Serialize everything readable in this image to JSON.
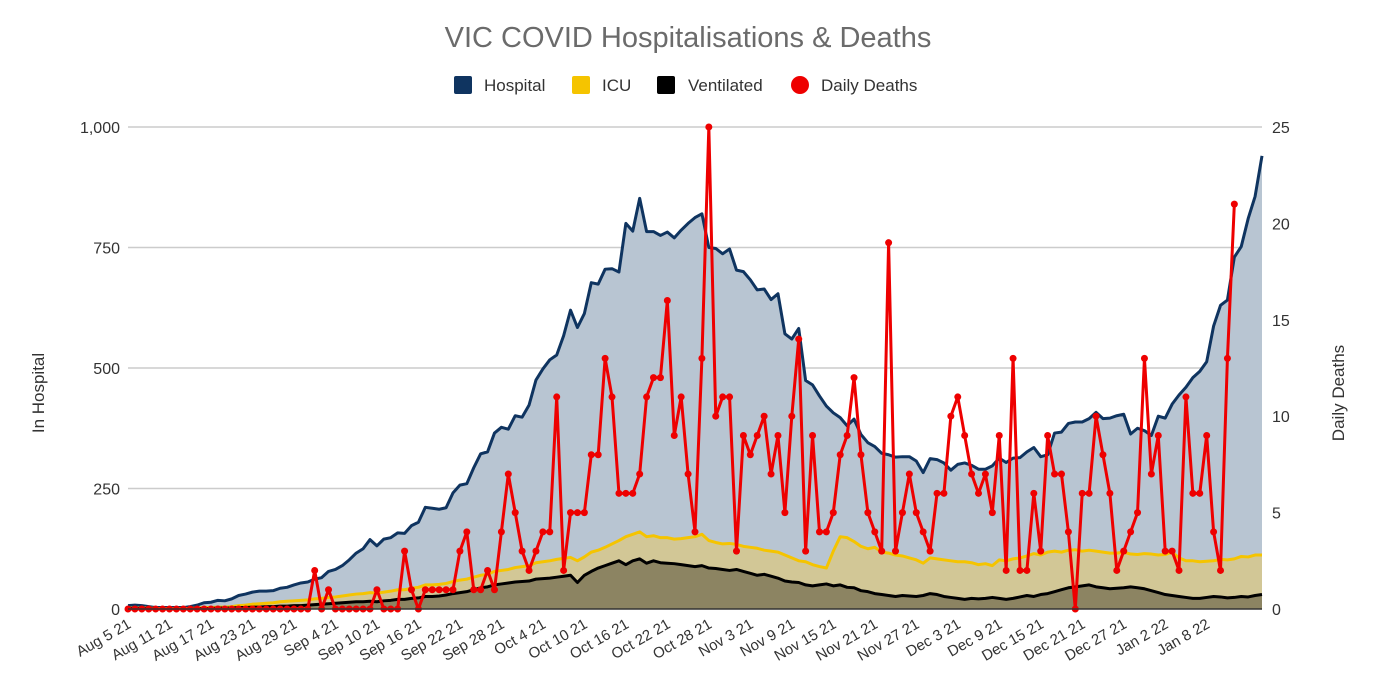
{
  "chart_data": {
    "type": "area",
    "title": "VIC COVID Hospitalisations & Deaths",
    "ylabel_left": "In Hospital",
    "ylabel_right": "Daily Deaths",
    "ylim_left": [
      0,
      1000
    ],
    "ylim_right": [
      0,
      25
    ],
    "yticks_left": [
      "0",
      "250",
      "500",
      "750",
      "1,000"
    ],
    "yticks_right": [
      "0",
      "5",
      "10",
      "15",
      "20",
      "25"
    ],
    "xtick_labels": [
      "Aug 5 21",
      "Aug 11 21",
      "Aug 17 21",
      "Aug 23 21",
      "Aug 29 21",
      "Sep 4 21",
      "Sep 10 21",
      "Sep 16 21",
      "Sep 22 21",
      "Sep 28 21",
      "Oct 4 21",
      "Oct 10 21",
      "Oct 16 21",
      "Oct 22 21",
      "Oct 28 21",
      "Nov 3 21",
      "Nov 9 21",
      "Nov 15 21",
      "Nov 21 21",
      "Nov 27 21",
      "Dec 3 21",
      "Dec 9 21",
      "Dec 15 21",
      "Dec 21 21",
      "Dec 27 21",
      "Jan 2 22",
      "Jan 8 22"
    ],
    "grid": true,
    "legend_position": "top",
    "colors": {
      "hospital_line": "#0f3460",
      "hospital_fill": "#b8c5d2",
      "icu_line": "#f5c400",
      "icu_fill": "#d2c796",
      "ventilated_line": "#000000",
      "ventilated_fill": "#8c8462",
      "deaths": "#ee0000",
      "grid": "#cccccc",
      "axis": "#333333"
    },
    "series": [
      {
        "name": "Hospital",
        "axis": "left",
        "values": [
          7,
          8,
          7,
          5,
          3,
          3,
          3,
          3,
          3,
          5,
          8,
          13,
          14,
          18,
          17,
          21,
          28,
          31,
          35,
          37,
          37,
          38,
          43,
          45,
          50,
          54,
          56,
          62,
          65,
          78,
          82,
          90,
          102,
          116,
          125,
          144,
          131,
          145,
          148,
          158,
          157,
          173,
          180,
          211,
          209,
          207,
          210,
          241,
          257,
          260,
          293,
          322,
          326,
          365,
          377,
          373,
          401,
          398,
          423,
          475,
          498,
          517,
          527,
          567,
          620,
          584,
          613,
          677,
          674,
          705,
          706,
          699,
          800,
          784,
          852,
          783,
          783,
          775,
          782,
          770,
          786,
          800,
          812,
          820,
          750,
          748,
          737,
          747,
          703,
          700,
          683,
          662,
          664,
          642,
          654,
          571,
          560,
          582,
          474,
          465,
          442,
          421,
          407,
          397,
          380,
          394,
          362,
          345,
          337,
          323,
          320,
          315,
          316,
          316,
          307,
          283,
          312,
          310,
          303,
          288,
          300,
          303,
          298,
          290,
          290,
          297,
          313,
          304,
          313,
          314,
          326,
          335,
          316,
          320,
          365,
          367,
          385,
          388,
          388,
          395,
          408,
          395,
          396,
          401,
          404,
          363,
          375,
          370,
          360,
          400,
          396,
          425,
          444,
          460,
          480,
          493,
          513,
          587,
          630,
          641,
          730,
          752,
          810,
          856,
          940
        ]
      },
      {
        "name": "ICU",
        "axis": "left",
        "values": [
          2,
          2,
          2,
          2,
          1,
          1,
          1,
          1,
          1,
          1,
          2,
          3,
          3,
          4,
          4,
          5,
          7,
          8,
          10,
          11,
          12,
          13,
          15,
          16,
          17,
          18,
          19,
          21,
          22,
          24,
          25,
          27,
          29,
          31,
          32,
          34,
          33,
          35,
          37,
          40,
          40,
          43,
          45,
          50,
          50,
          51,
          53,
          57,
          60,
          62,
          66,
          70,
          72,
          78,
          80,
          82,
          86,
          88,
          90,
          96,
          98,
          100,
          103,
          105,
          107,
          100,
          108,
          118,
          122,
          128,
          135,
          142,
          150,
          155,
          160,
          150,
          152,
          148,
          148,
          145,
          146,
          148,
          150,
          155,
          142,
          138,
          135,
          136,
          134,
          130,
          128,
          126,
          122,
          120,
          118,
          112,
          106,
          100,
          98,
          92,
          88,
          85,
          120,
          150,
          148,
          140,
          130,
          125,
          128,
          118,
          116,
          112,
          110,
          106,
          102,
          95,
          106,
          104,
          102,
          100,
          98,
          98,
          96,
          92,
          94,
          90,
          102,
          100,
          104,
          106,
          110,
          115,
          112,
          118,
          120,
          118,
          122,
          123,
          120,
          122,
          120,
          118,
          116,
          116,
          118,
          114,
          113,
          115,
          114,
          112,
          113,
          118,
          106,
          100,
          100,
          98,
          99,
          100,
          103,
          102,
          104,
          109,
          108,
          112,
          112
        ]
      },
      {
        "name": "Ventilated",
        "axis": "left",
        "values": [
          1,
          1,
          1,
          1,
          0,
          0,
          0,
          0,
          0,
          0,
          1,
          1,
          1,
          2,
          2,
          2,
          3,
          3,
          4,
          4,
          5,
          5,
          6,
          6,
          7,
          7,
          8,
          9,
          10,
          11,
          12,
          13,
          14,
          15,
          15,
          16,
          15,
          17,
          18,
          20,
          20,
          22,
          23,
          26,
          26,
          27,
          29,
          32,
          34,
          36,
          40,
          44,
          46,
          50,
          52,
          54,
          56,
          57,
          58,
          62,
          63,
          64,
          66,
          68,
          70,
          55,
          70,
          78,
          85,
          90,
          95,
          100,
          92,
          100,
          104,
          95,
          100,
          96,
          95,
          94,
          92,
          90,
          88,
          90,
          85,
          84,
          82,
          80,
          82,
          78,
          74,
          70,
          72,
          68,
          64,
          58,
          56,
          55,
          50,
          48,
          50,
          52,
          48,
          50,
          45,
          44,
          38,
          36,
          32,
          30,
          28,
          26,
          28,
          27,
          26,
          28,
          32,
          30,
          26,
          24,
          22,
          20,
          22,
          21,
          22,
          24,
          22,
          20,
          22,
          25,
          28,
          26,
          30,
          32,
          36,
          40,
          44,
          46,
          48,
          50,
          46,
          44,
          42,
          43,
          44,
          46,
          44,
          42,
          38,
          34,
          30,
          28,
          26,
          24,
          22,
          22,
          24,
          26,
          25,
          23,
          24,
          26,
          25,
          28,
          30
        ]
      },
      {
        "name": "Daily Deaths",
        "axis": "right",
        "values": [
          0,
          0,
          0,
          0,
          0,
          0,
          0,
          0,
          0,
          0,
          0,
          0,
          0,
          0,
          0,
          0,
          0,
          0,
          0,
          0,
          0,
          0,
          0,
          0,
          0,
          0,
          0,
          2,
          0,
          1,
          0,
          0,
          0,
          0,
          0,
          0,
          1,
          0,
          0,
          0,
          3,
          1,
          0,
          1,
          1,
          1,
          1,
          1,
          3,
          4,
          1,
          1,
          2,
          1,
          4,
          7,
          5,
          3,
          2,
          3,
          4,
          4,
          11,
          2,
          5,
          5,
          5,
          8,
          8,
          13,
          11,
          6,
          6,
          6,
          7,
          11,
          12,
          12,
          16,
          9,
          11,
          7,
          4,
          13,
          25,
          10,
          11,
          11,
          3,
          9,
          8,
          9,
          10,
          7,
          9,
          5,
          10,
          14,
          3,
          9,
          4,
          4,
          5,
          8,
          9,
          12,
          8,
          5,
          4,
          3,
          19,
          3,
          5,
          7,
          5,
          4,
          3,
          6,
          6,
          10,
          11,
          9,
          7,
          6,
          7,
          5,
          9,
          2,
          13,
          2,
          2,
          6,
          3,
          9,
          7,
          7,
          4,
          0,
          6,
          6,
          10,
          8,
          6,
          2,
          3,
          4,
          5,
          13,
          7,
          9,
          3,
          3,
          2,
          11,
          6,
          6,
          9,
          4,
          2,
          13,
          21
        ]
      }
    ]
  }
}
